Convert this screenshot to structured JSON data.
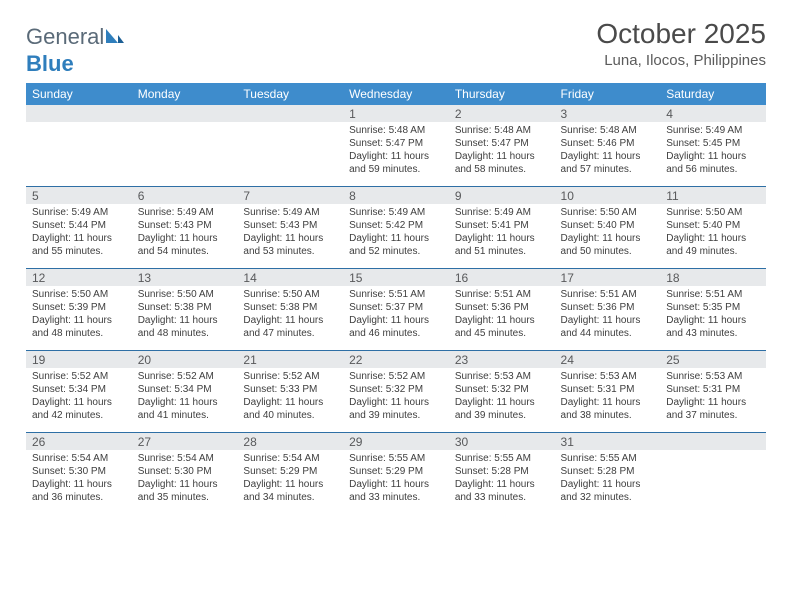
{
  "logo": {
    "text_left": "General",
    "text_right": "Blue"
  },
  "title": "October 2025",
  "location": "Luna, Ilocos, Philippines",
  "colors": {
    "header_bg": "#3e8ccc",
    "header_text": "#ffffff",
    "row_divider": "#2e6fa5",
    "daynum_bg": "#e7e9eb",
    "daynum_text": "#58595b",
    "body_text": "#3e3e3e",
    "title_text": "#4a4a4a",
    "logo_gray": "#5a6a78",
    "logo_blue": "#2f7ebc",
    "page_bg": "#ffffff"
  },
  "typography": {
    "title_fontsize": 28,
    "location_fontsize": 15,
    "dayheader_fontsize": 12,
    "daynum_fontsize": 12,
    "cell_fontsize": 10
  },
  "day_headers": [
    "Sunday",
    "Monday",
    "Tuesday",
    "Wednesday",
    "Thursday",
    "Friday",
    "Saturday"
  ],
  "weeks": [
    [
      {
        "n": "",
        "lines": []
      },
      {
        "n": "",
        "lines": []
      },
      {
        "n": "",
        "lines": []
      },
      {
        "n": "1",
        "lines": [
          "Sunrise: 5:48 AM",
          "Sunset: 5:47 PM",
          "Daylight: 11 hours and 59 minutes."
        ]
      },
      {
        "n": "2",
        "lines": [
          "Sunrise: 5:48 AM",
          "Sunset: 5:47 PM",
          "Daylight: 11 hours and 58 minutes."
        ]
      },
      {
        "n": "3",
        "lines": [
          "Sunrise: 5:48 AM",
          "Sunset: 5:46 PM",
          "Daylight: 11 hours and 57 minutes."
        ]
      },
      {
        "n": "4",
        "lines": [
          "Sunrise: 5:49 AM",
          "Sunset: 5:45 PM",
          "Daylight: 11 hours and 56 minutes."
        ]
      }
    ],
    [
      {
        "n": "5",
        "lines": [
          "Sunrise: 5:49 AM",
          "Sunset: 5:44 PM",
          "Daylight: 11 hours and 55 minutes."
        ]
      },
      {
        "n": "6",
        "lines": [
          "Sunrise: 5:49 AM",
          "Sunset: 5:43 PM",
          "Daylight: 11 hours and 54 minutes."
        ]
      },
      {
        "n": "7",
        "lines": [
          "Sunrise: 5:49 AM",
          "Sunset: 5:43 PM",
          "Daylight: 11 hours and 53 minutes."
        ]
      },
      {
        "n": "8",
        "lines": [
          "Sunrise: 5:49 AM",
          "Sunset: 5:42 PM",
          "Daylight: 11 hours and 52 minutes."
        ]
      },
      {
        "n": "9",
        "lines": [
          "Sunrise: 5:49 AM",
          "Sunset: 5:41 PM",
          "Daylight: 11 hours and 51 minutes."
        ]
      },
      {
        "n": "10",
        "lines": [
          "Sunrise: 5:50 AM",
          "Sunset: 5:40 PM",
          "Daylight: 11 hours and 50 minutes."
        ]
      },
      {
        "n": "11",
        "lines": [
          "Sunrise: 5:50 AM",
          "Sunset: 5:40 PM",
          "Daylight: 11 hours and 49 minutes."
        ]
      }
    ],
    [
      {
        "n": "12",
        "lines": [
          "Sunrise: 5:50 AM",
          "Sunset: 5:39 PM",
          "Daylight: 11 hours and 48 minutes."
        ]
      },
      {
        "n": "13",
        "lines": [
          "Sunrise: 5:50 AM",
          "Sunset: 5:38 PM",
          "Daylight: 11 hours and 48 minutes."
        ]
      },
      {
        "n": "14",
        "lines": [
          "Sunrise: 5:50 AM",
          "Sunset: 5:38 PM",
          "Daylight: 11 hours and 47 minutes."
        ]
      },
      {
        "n": "15",
        "lines": [
          "Sunrise: 5:51 AM",
          "Sunset: 5:37 PM",
          "Daylight: 11 hours and 46 minutes."
        ]
      },
      {
        "n": "16",
        "lines": [
          "Sunrise: 5:51 AM",
          "Sunset: 5:36 PM",
          "Daylight: 11 hours and 45 minutes."
        ]
      },
      {
        "n": "17",
        "lines": [
          "Sunrise: 5:51 AM",
          "Sunset: 5:36 PM",
          "Daylight: 11 hours and 44 minutes."
        ]
      },
      {
        "n": "18",
        "lines": [
          "Sunrise: 5:51 AM",
          "Sunset: 5:35 PM",
          "Daylight: 11 hours and 43 minutes."
        ]
      }
    ],
    [
      {
        "n": "19",
        "lines": [
          "Sunrise: 5:52 AM",
          "Sunset: 5:34 PM",
          "Daylight: 11 hours and 42 minutes."
        ]
      },
      {
        "n": "20",
        "lines": [
          "Sunrise: 5:52 AM",
          "Sunset: 5:34 PM",
          "Daylight: 11 hours and 41 minutes."
        ]
      },
      {
        "n": "21",
        "lines": [
          "Sunrise: 5:52 AM",
          "Sunset: 5:33 PM",
          "Daylight: 11 hours and 40 minutes."
        ]
      },
      {
        "n": "22",
        "lines": [
          "Sunrise: 5:52 AM",
          "Sunset: 5:32 PM",
          "Daylight: 11 hours and 39 minutes."
        ]
      },
      {
        "n": "23",
        "lines": [
          "Sunrise: 5:53 AM",
          "Sunset: 5:32 PM",
          "Daylight: 11 hours and 39 minutes."
        ]
      },
      {
        "n": "24",
        "lines": [
          "Sunrise: 5:53 AM",
          "Sunset: 5:31 PM",
          "Daylight: 11 hours and 38 minutes."
        ]
      },
      {
        "n": "25",
        "lines": [
          "Sunrise: 5:53 AM",
          "Sunset: 5:31 PM",
          "Daylight: 11 hours and 37 minutes."
        ]
      }
    ],
    [
      {
        "n": "26",
        "lines": [
          "Sunrise: 5:54 AM",
          "Sunset: 5:30 PM",
          "Daylight: 11 hours and 36 minutes."
        ]
      },
      {
        "n": "27",
        "lines": [
          "Sunrise: 5:54 AM",
          "Sunset: 5:30 PM",
          "Daylight: 11 hours and 35 minutes."
        ]
      },
      {
        "n": "28",
        "lines": [
          "Sunrise: 5:54 AM",
          "Sunset: 5:29 PM",
          "Daylight: 11 hours and 34 minutes."
        ]
      },
      {
        "n": "29",
        "lines": [
          "Sunrise: 5:55 AM",
          "Sunset: 5:29 PM",
          "Daylight: 11 hours and 33 minutes."
        ]
      },
      {
        "n": "30",
        "lines": [
          "Sunrise: 5:55 AM",
          "Sunset: 5:28 PM",
          "Daylight: 11 hours and 33 minutes."
        ]
      },
      {
        "n": "31",
        "lines": [
          "Sunrise: 5:55 AM",
          "Sunset: 5:28 PM",
          "Daylight: 11 hours and 32 minutes."
        ]
      },
      {
        "n": "",
        "lines": []
      }
    ]
  ]
}
